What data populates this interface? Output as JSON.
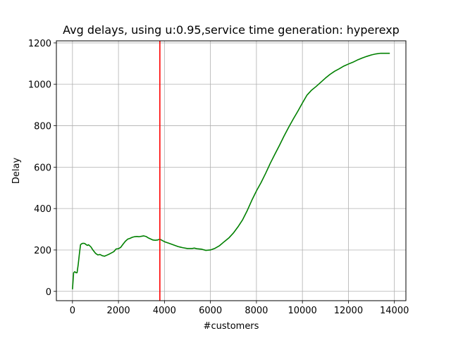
{
  "chart_data": {
    "type": "line",
    "title": "Avg delays, using u:0.95,service time generation: hyperexp",
    "xlabel": "#customers",
    "ylabel": "Delay",
    "xlim": [
      -700,
      14500
    ],
    "ylim": [
      -45,
      1210
    ],
    "xticks": [
      0,
      2000,
      4000,
      6000,
      8000,
      10000,
      12000,
      14000
    ],
    "xtick_labels": [
      "0",
      "2000",
      "4000",
      "6000",
      "8000",
      "10000",
      "12000",
      "14000"
    ],
    "yticks": [
      0,
      200,
      400,
      600,
      800,
      1000,
      1200
    ],
    "ytick_labels": [
      "0",
      "200",
      "400",
      "600",
      "800",
      "1000",
      "1200"
    ],
    "grid": true,
    "vline": {
      "x": 3800,
      "color": "#ff0000"
    },
    "series": [
      {
        "color": "#008000",
        "x": [
          0,
          50,
          100,
          150,
          200,
          250,
          300,
          350,
          400,
          450,
          500,
          550,
          600,
          650,
          700,
          750,
          800,
          900,
          1000,
          1100,
          1200,
          1300,
          1400,
          1500,
          1600,
          1700,
          1800,
          1900,
          2000,
          2100,
          2200,
          2300,
          2400,
          2500,
          2600,
          2700,
          2800,
          2900,
          3000,
          3100,
          3200,
          3300,
          3400,
          3500,
          3600,
          3700,
          3800,
          4000,
          4200,
          4400,
          4600,
          4800,
          5000,
          5200,
          5300,
          5400,
          5600,
          5800,
          6000,
          6200,
          6400,
          6600,
          6800,
          7000,
          7200,
          7400,
          7600,
          7800,
          8000,
          8200,
          8400,
          8600,
          8800,
          9000,
          9200,
          9400,
          9600,
          9800,
          10000,
          10200,
          10400,
          10600,
          10800,
          11000,
          11200,
          11400,
          11600,
          11800,
          12000,
          12200,
          12400,
          12600,
          12800,
          13000,
          13200,
          13400,
          13600,
          13800
        ],
        "y": [
          10,
          90,
          95,
          90,
          90,
          130,
          180,
          225,
          230,
          232,
          232,
          230,
          225,
          222,
          225,
          220,
          215,
          198,
          184,
          176,
          178,
          172,
          170,
          175,
          180,
          186,
          192,
          205,
          206,
          213,
          228,
          242,
          252,
          256,
          261,
          264,
          265,
          264,
          266,
          268,
          265,
          258,
          253,
          248,
          247,
          248,
          252,
          240,
          232,
          224,
          216,
          211,
          207,
          207,
          209,
          206,
          204,
          198,
          200,
          208,
          221,
          240,
          258,
          282,
          312,
          346,
          390,
          440,
          485,
          525,
          570,
          618,
          662,
          705,
          750,
          792,
          832,
          870,
          910,
          948,
          972,
          990,
          1010,
          1030,
          1048,
          1063,
          1075,
          1088,
          1098,
          1107,
          1118,
          1127,
          1135,
          1142,
          1147,
          1150,
          1150,
          1150
        ]
      }
    ]
  }
}
